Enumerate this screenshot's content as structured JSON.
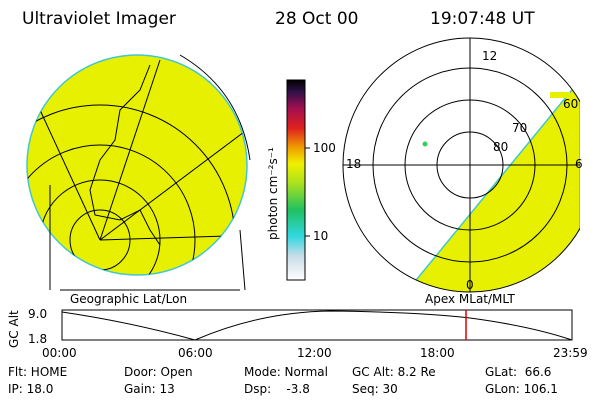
{
  "header": {
    "title": "Ultraviolet Imager",
    "date": "28 Oct 00",
    "time": "19:07:48 UT"
  },
  "colorbar": {
    "label": "photon cm⁻²s⁻¹",
    "ticks": [
      "100",
      "10"
    ]
  },
  "polar": {
    "mlt": [
      "12",
      "18",
      "6",
      "0"
    ],
    "mlat": [
      "60",
      "70",
      "80"
    ]
  },
  "panels": {
    "left": "Geographic Lat/Lon",
    "right": "Apex MLat/MLT"
  },
  "altitude": {
    "label": "GC Alt",
    "yticks": [
      "9.0",
      "1.8"
    ],
    "xticks": [
      "00:00",
      "06:00",
      "12:00",
      "18:00",
      "23:59"
    ]
  },
  "status": {
    "rows": [
      [
        "Flt: HOME",
        "Door: Open",
        "Mode: Normal",
        "GC Alt: 8.2 Re",
        "GLat:  66.6"
      ],
      [
        "IP: 18.0",
        "Gain: 13",
        "Dsp:    -3.8",
        "Seq: 30",
        "GLon: 106.1"
      ]
    ]
  }
}
